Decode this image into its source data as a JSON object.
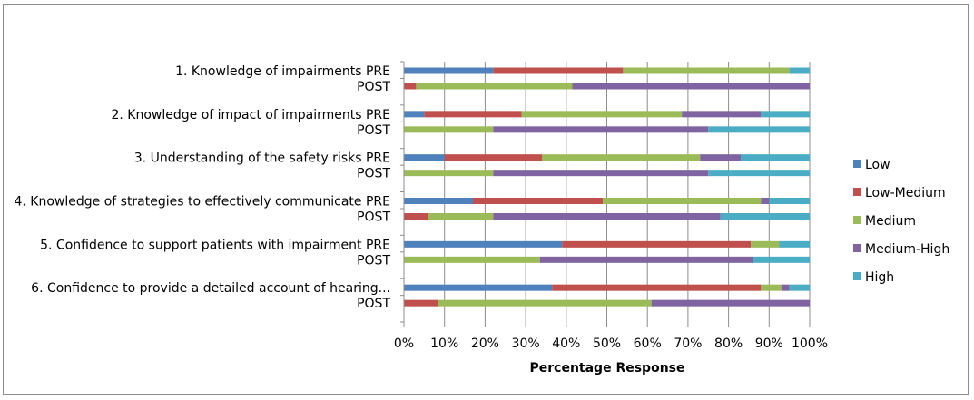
{
  "chart_data": {
    "type": "bar",
    "orientation": "horizontal",
    "stacked": "100%",
    "title": "",
    "xlabel": "Percentage Response",
    "ylabel": "",
    "xlim": [
      0,
      100
    ],
    "x_ticks": [
      "0%",
      "10%",
      "20%",
      "30%",
      "40%",
      "50%",
      "60%",
      "70%",
      "80%",
      "90%",
      "100%"
    ],
    "grid": "vertical",
    "legend_position": "right",
    "groups": [
      {
        "label": "1. Knowledge of impairments PRE",
        "post_label": "POST"
      },
      {
        "label": "2. Knowledge of impact of impairments PRE",
        "post_label": "POST"
      },
      {
        "label": "3.  Understanding of the safety risks PRE",
        "post_label": "POST"
      },
      {
        "label": "4. Knowledge of strategies to effectively communicate PRE",
        "post_label": "POST"
      },
      {
        "label": "5. Confidence to support patients with impairment PRE",
        "post_label": "POST"
      },
      {
        "label": "6. Confidence to provide a detailed account of hearing...",
        "post_label": "POST"
      }
    ],
    "categories": [
      "1 PRE",
      "1 POST",
      "2 PRE",
      "2 POST",
      "3 PRE",
      "3 POST",
      "4 PRE",
      "4 POST",
      "5 PRE",
      "5 POST",
      "6 PRE",
      "6 POST"
    ],
    "series": [
      {
        "name": "Low",
        "color": "#4f81bd",
        "values": [
          22,
          0,
          5,
          0,
          10,
          0,
          17,
          0,
          39,
          0,
          36.5,
          0
        ]
      },
      {
        "name": "Low-Medium",
        "color": "#c0504d",
        "values": [
          32,
          3,
          24,
          0,
          24,
          0,
          32,
          6,
          46.5,
          0,
          51.5,
          8.5
        ]
      },
      {
        "name": "Medium",
        "color": "#9bbb59",
        "values": [
          41,
          38.5,
          39.5,
          22,
          39,
          22,
          39,
          16,
          7,
          33.5,
          5,
          52.5
        ]
      },
      {
        "name": "Medium-High",
        "color": "#8064a2",
        "values": [
          0,
          58.5,
          19.5,
          53,
          10,
          53,
          2,
          56,
          0,
          52.5,
          2,
          39
        ]
      },
      {
        "name": "High",
        "color": "#4bacc6",
        "values": [
          5,
          0,
          12,
          25,
          17,
          25,
          10,
          22,
          7.5,
          14,
          5,
          0
        ]
      }
    ]
  }
}
